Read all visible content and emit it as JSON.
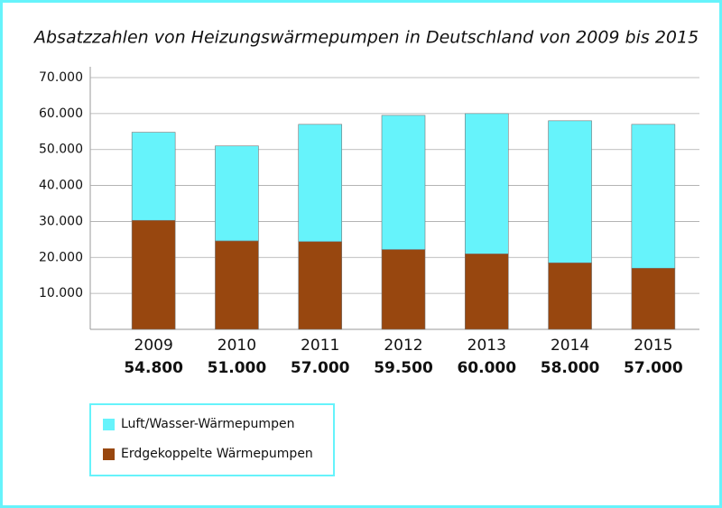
{
  "chart_data": {
    "type": "stacked-bar",
    "title": "Absatzzahlen von Heizungswärmepumpen in Deutschland von 2009 bis 2015",
    "categories": [
      "2009",
      "2010",
      "2011",
      "2012",
      "2013",
      "2014",
      "2015"
    ],
    "series": [
      {
        "name": "Erdgekoppelte Wärmepumpen",
        "color": "#98470f",
        "values": [
          30300,
          24600,
          24400,
          22200,
          21000,
          18500,
          17000
        ]
      },
      {
        "name": "Luft/Wasser-Wärmepumpen",
        "color": "#66f3fb",
        "values": [
          24500,
          26400,
          32600,
          37300,
          39000,
          39500,
          40000
        ]
      }
    ],
    "totals": {
      "values": [
        54800,
        51000,
        57000,
        59500,
        60000,
        58000,
        57000
      ],
      "value_labels": [
        "54.800",
        "51.000",
        "57.000",
        "59.500",
        "60.000",
        "58.000",
        "57.000"
      ]
    },
    "ylim": [
      0,
      70000
    ],
    "yticks": [
      {
        "value": 10000,
        "label": "10.000"
      },
      {
        "value": 20000,
        "label": "20.000"
      },
      {
        "value": 30000,
        "label": "30.000"
      },
      {
        "value": 40000,
        "label": "40.000"
      },
      {
        "value": 50000,
        "label": "50.000"
      },
      {
        "value": 60000,
        "label": "60.000"
      },
      {
        "value": 70000,
        "label": "70.000"
      }
    ],
    "grid": true,
    "legend": "bottom-left"
  }
}
